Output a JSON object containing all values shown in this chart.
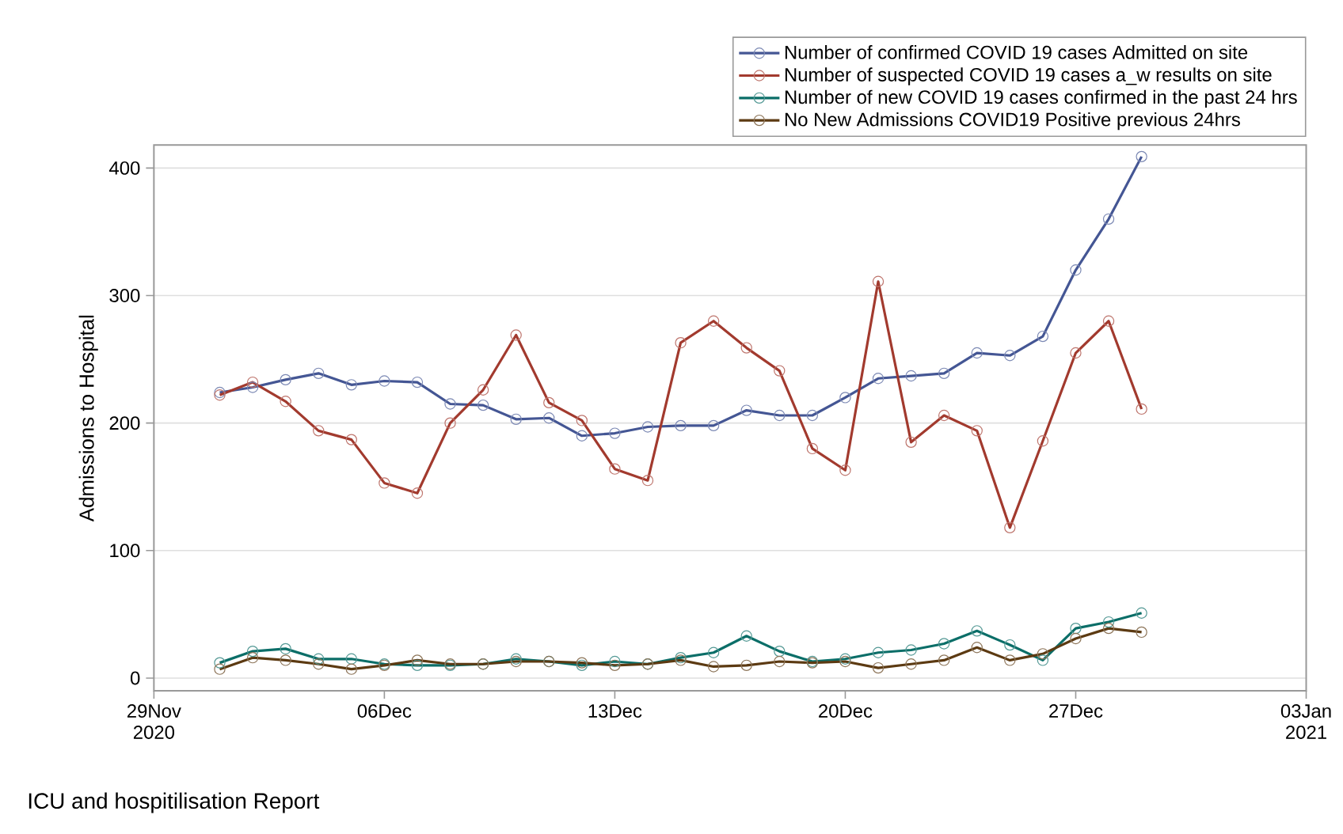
{
  "chart_data": {
    "type": "line",
    "ylabel": "Admissions to Hospital",
    "annotations": [
      "ICU and hospitilisation Report"
    ],
    "x": [
      "2020-12-01",
      "2020-12-02",
      "2020-12-03",
      "2020-12-04",
      "2020-12-05",
      "2020-12-06",
      "2020-12-07",
      "2020-12-08",
      "2020-12-09",
      "2020-12-10",
      "2020-12-11",
      "2020-12-12",
      "2020-12-13",
      "2020-12-14",
      "2020-12-15",
      "2020-12-16",
      "2020-12-17",
      "2020-12-18",
      "2020-12-19",
      "2020-12-20",
      "2020-12-21",
      "2020-12-22",
      "2020-12-23",
      "2020-12-24",
      "2020-12-25",
      "2020-12-26",
      "2020-12-27",
      "2020-12-28",
      "2020-12-29"
    ],
    "series": [
      {
        "name": "Number of confirmed COVID 19 cases Admitted on site",
        "color": "#445694",
        "values": [
          224,
          228,
          234,
          239,
          230,
          233,
          232,
          215,
          214,
          203,
          204,
          190,
          192,
          197,
          198,
          198,
          210,
          206,
          206,
          220,
          235,
          237,
          239,
          255,
          253,
          268,
          320,
          360,
          409
        ]
      },
      {
        "name": "Number of suspected COVID 19 cases a_w results on site",
        "color": "#a23a2e",
        "values": [
          222,
          232,
          217,
          194,
          187,
          153,
          145,
          200,
          226,
          269,
          216,
          202,
          164,
          155,
          263,
          280,
          259,
          241,
          180,
          163,
          311,
          185,
          206,
          194,
          118,
          186,
          255,
          280,
          211
        ]
      },
      {
        "name": "Number of new COVID 19 cases confirmed in the past 24 hrs",
        "color": "#0b6e68",
        "values": [
          12,
          21,
          23,
          15,
          15,
          11,
          10,
          10,
          11,
          15,
          13,
          10,
          13,
          11,
          16,
          20,
          33,
          21,
          13,
          15,
          20,
          22,
          27,
          37,
          26,
          14,
          39,
          44,
          51
        ]
      },
      {
        "name": "No New Admissions COVID19 Positive previous 24hrs",
        "color": "#5c3a12",
        "values": [
          7,
          16,
          14,
          11,
          7,
          10,
          14,
          11,
          11,
          13,
          13,
          12,
          10,
          11,
          14,
          9,
          10,
          13,
          12,
          13,
          8,
          11,
          14,
          24,
          14,
          19,
          31,
          39,
          36
        ]
      }
    ],
    "xlim": [
      "2020-11-29",
      "2021-01-03"
    ],
    "xticks": [
      {
        "value": "2020-11-29",
        "label": "29Nov 2020"
      },
      {
        "value": "2020-12-06",
        "label": "06Dec"
      },
      {
        "value": "2020-12-13",
        "label": "13Dec"
      },
      {
        "value": "2020-12-20",
        "label": "20Dec"
      },
      {
        "value": "2020-12-27",
        "label": "27Dec"
      },
      {
        "value": "2021-01-03",
        "label": "03Jan 2021"
      }
    ],
    "ylim": [
      -10,
      418
    ],
    "yticks": [
      0,
      100,
      200,
      300,
      400
    ],
    "grid": "y",
    "legend": "top right",
    "marker": "circle",
    "line_style": "solid"
  }
}
